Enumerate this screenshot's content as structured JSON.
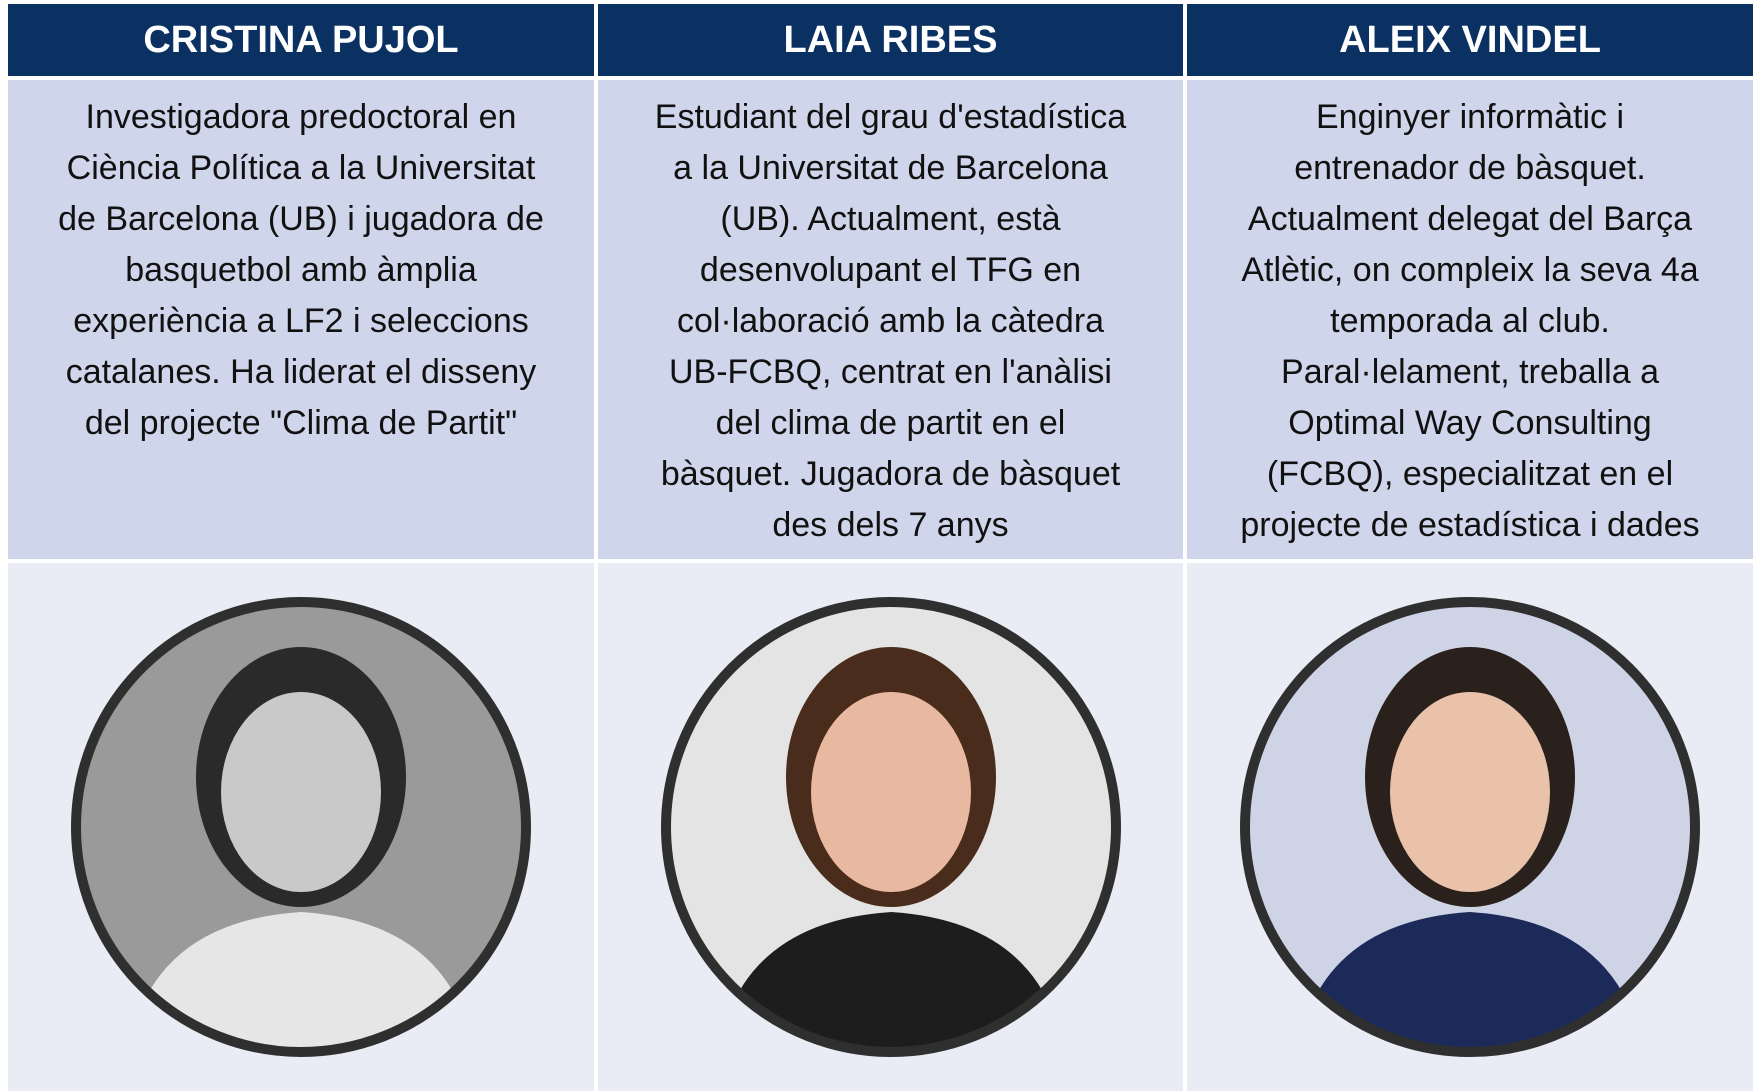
{
  "people": [
    {
      "name": "CRISTINA PUJOL",
      "description_lines": [
        "Investigadora predoctoral en",
        "Ciència Política a la Universitat",
        "de Barcelona (UB) i jugadora de",
        "basquetbol amb àmplia",
        "experiència a LF2 i seleccions",
        "catalanes. Ha liderat el disseny",
        "del projecte \"Clima de Partit\""
      ]
    },
    {
      "name": "LAIA RIBES",
      "description_lines": [
        "Estudiant del grau d'estadística",
        "a la Universitat de Barcelona",
        "(UB). Actualment, està",
        "desenvolupant el TFG en",
        "col·laboració amb la càtedra",
        "UB-FCBQ, centrat en l'anàlisi",
        "del clima de partit en el",
        "bàsquet. Jugadora de bàsquet",
        "des dels 7 anys"
      ]
    },
    {
      "name": "ALEIX VINDEL",
      "description_lines": [
        "Enginyer informàtic i",
        "entrenador de bàsquet.",
        "Actualment delegat del Barça",
        "Atlètic, on compleix la seva 4a",
        "temporada al club.",
        "Paral·lelament, treballa a",
        "Optimal Way Consulting",
        "(FCBQ), especialitzat en el",
        "projecte de estadística i dades"
      ]
    }
  ]
}
